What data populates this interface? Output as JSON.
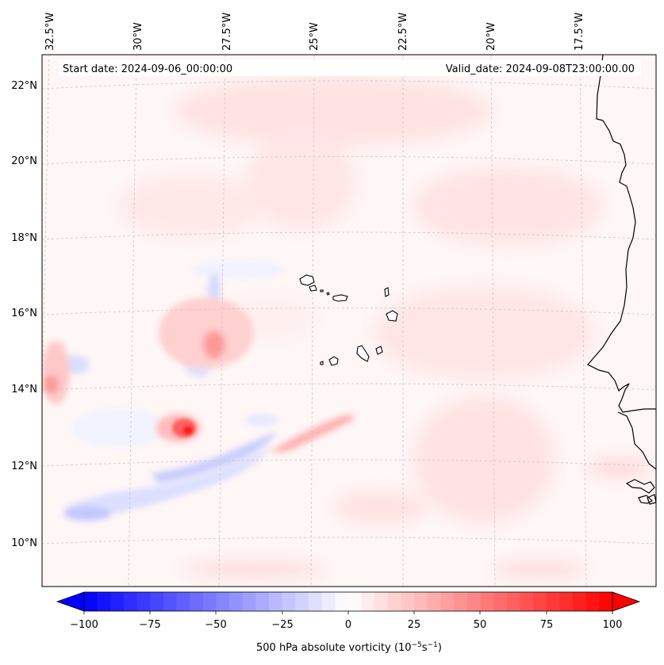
{
  "map": {
    "start_date": "Start date: 2024-09-06_00:00:00",
    "valid_date": "Valid_date: 2024-09-08T23:00:00.00",
    "lon_labels": [
      "32.5°W",
      "30°W",
      "27.5°W",
      "25°W",
      "22.5°W",
      "20°W",
      "17.5°W"
    ],
    "lat_labels": [
      "22°N",
      "20°N",
      "18°N",
      "16°N",
      "14°N",
      "12°N",
      "10°N"
    ],
    "gridlines": true,
    "colormap": "bwr",
    "colors": {
      "negative_max": "#0000ff",
      "zero": "#ffffff",
      "positive_max": "#ff0000",
      "coastline": "#000000"
    }
  },
  "colorbar": {
    "ticks": [
      "−100",
      "−75",
      "−50",
      "−25",
      "0",
      "25",
      "50",
      "75",
      "100"
    ],
    "min": -100,
    "max": 100,
    "extend": "both",
    "label_main": "500 hPa absolute vorticity (10",
    "label_exp1": "−5",
    "label_mid": "s",
    "label_exp2": "−1",
    "label_end": ")"
  }
}
